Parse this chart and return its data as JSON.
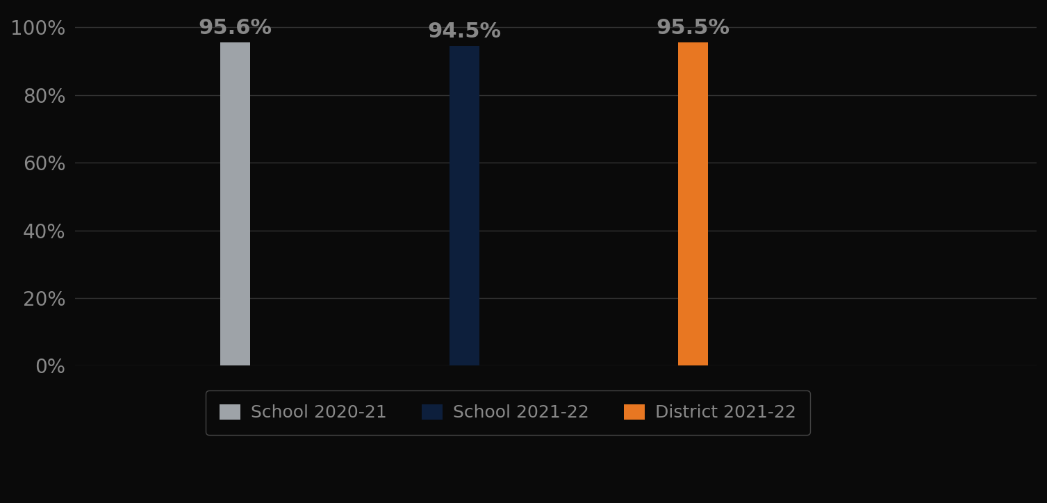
{
  "categories": [
    "School 2020-21",
    "School 2021-22",
    "District 2021-22"
  ],
  "values": [
    0.956,
    0.945,
    0.955
  ],
  "labels": [
    "95.6%",
    "94.5%",
    "95.5%"
  ],
  "bar_colors": [
    "#9EA3A8",
    "#0D1F3C",
    "#E87722"
  ],
  "background_color": "#0a0a0a",
  "text_color": "#888888",
  "label_color": "#888888",
  "ylim": [
    0,
    1.05
  ],
  "yticks": [
    0,
    0.2,
    0.4,
    0.6,
    0.8,
    1.0
  ],
  "ytick_labels": [
    "0%",
    "20%",
    "40%",
    "60%",
    "80%",
    "100%"
  ],
  "grid_color": "#333333",
  "legend_labels": [
    "School 2020-21",
    "School 2021-22",
    "District 2021-22"
  ],
  "bar_width": 0.13,
  "x_positions": [
    1,
    2,
    3
  ],
  "xlim": [
    0.3,
    4.5
  ],
  "label_fontsize": 22,
  "tick_fontsize": 20,
  "legend_fontsize": 18
}
